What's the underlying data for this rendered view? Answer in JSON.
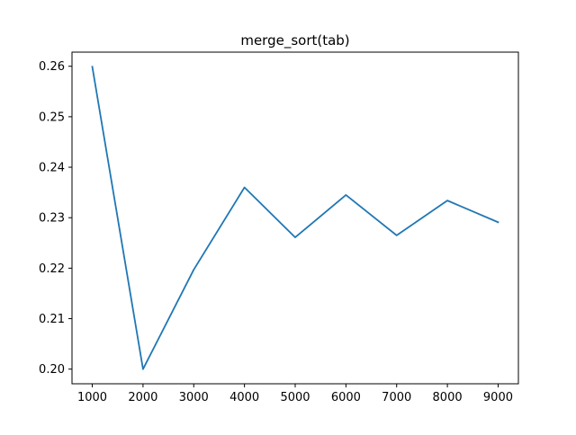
{
  "chart_data": {
    "type": "line",
    "title": "merge_sort(tab)",
    "xlabel": "",
    "ylabel": "",
    "x": [
      1000,
      2000,
      3000,
      4000,
      5000,
      6000,
      7000,
      8000,
      9000
    ],
    "series": [
      {
        "values": [
          0.2599,
          0.2,
          0.2197,
          0.236,
          0.2261,
          0.2345,
          0.2265,
          0.2334,
          0.2291
        ],
        "color": "#1f77b4"
      }
    ],
    "xlim": [
      600,
      9400
    ],
    "ylim": [
      0.1971,
      0.2628
    ],
    "xticks": [
      1000,
      2000,
      3000,
      4000,
      5000,
      6000,
      7000,
      8000,
      9000
    ],
    "xtick_labels": [
      "1000",
      "2000",
      "3000",
      "4000",
      "5000",
      "6000",
      "7000",
      "8000",
      "9000"
    ],
    "yticks": [
      0.2,
      0.21,
      0.22,
      0.23,
      0.24,
      0.25,
      0.26
    ],
    "ytick_labels": [
      "0.20",
      "0.21",
      "0.22",
      "0.23",
      "0.24",
      "0.25",
      "0.26"
    ],
    "grid": false,
    "legend": "none"
  }
}
